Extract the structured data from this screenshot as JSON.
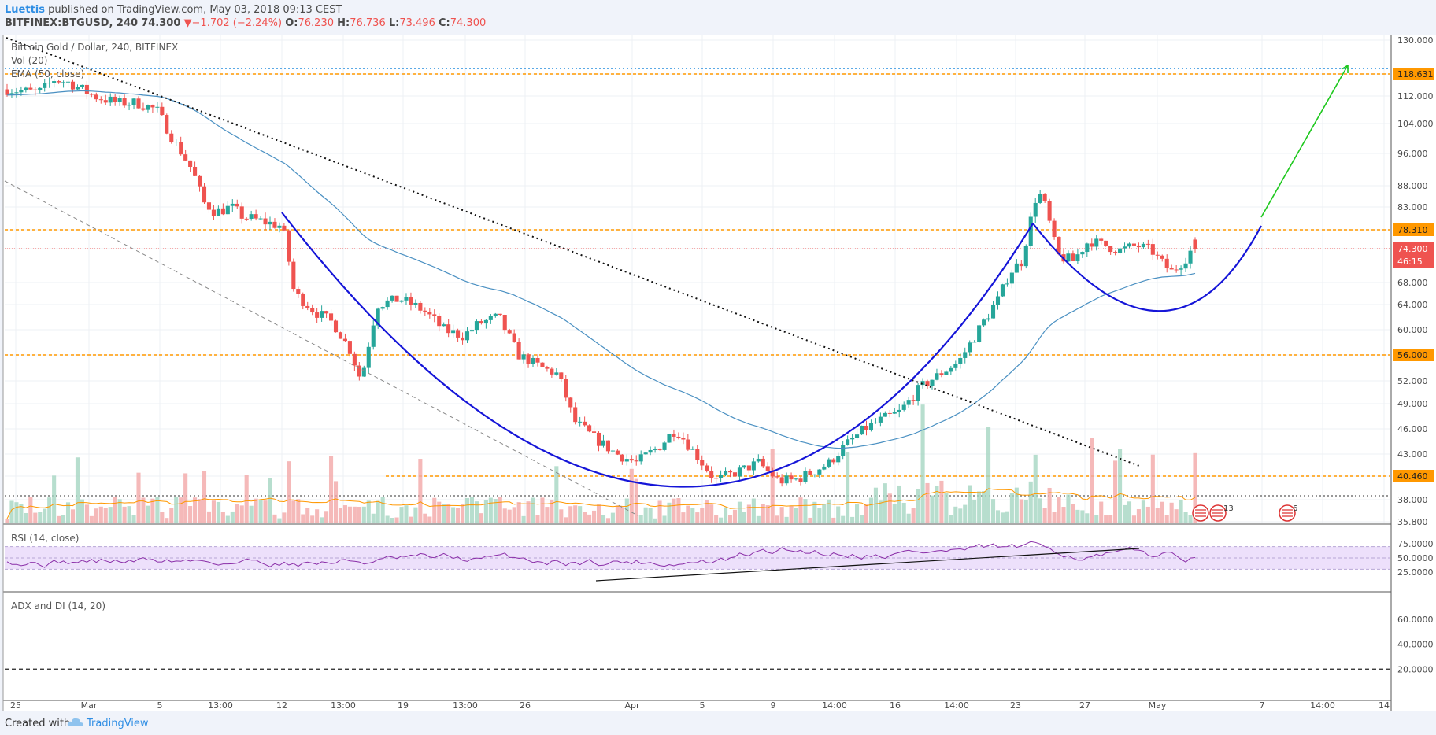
{
  "header": {
    "author": "Luettis",
    "published": "published on TradingView.com, May 03, 2018 09:13 CEST",
    "symbol": "BITFINEX:BTGUSD, 240",
    "last": "74.300",
    "change_arrow": "▼",
    "change": "−1.702 (−2.24%)",
    "open": "76.230",
    "high": "76.736",
    "low": "73.496",
    "close": "74.300"
  },
  "main_pane": {
    "title": "Bitcoin Gold / Dollar, 240, BITFINEX",
    "vol_label": "Vol (20)",
    "ema_label": "EMA (50, close)"
  },
  "chart_data": {
    "type": "candlestick",
    "title": "Bitcoin Gold / Dollar, 240, BITFINEX",
    "price_axis": {
      "ticks": [
        "130.000",
        "118.631",
        "112.000",
        "104.000",
        "96.000",
        "88.000",
        "83.000",
        "78.310",
        "74.300",
        "68.000",
        "64.000",
        "60.000",
        "56.000",
        "52.000",
        "49.000",
        "46.000",
        "43.000",
        "40.460",
        "38.000",
        "35.800"
      ],
      "price_labels": [
        {
          "value": "118.631",
          "kind": "level"
        },
        {
          "value": "78.310",
          "kind": "level"
        },
        {
          "value": "74.300",
          "kind": "last"
        },
        {
          "value": "46:15",
          "kind": "countdown"
        },
        {
          "value": "56.000",
          "kind": "level"
        },
        {
          "value": "40.460",
          "kind": "level"
        }
      ]
    },
    "time_axis": [
      "25",
      "Mar",
      "5",
      "13:00",
      "12",
      "13:00",
      "19",
      "13:00",
      "26",
      "Apr",
      "5",
      "9",
      "14:00",
      "16",
      "14:00",
      "23",
      "27",
      "May",
      "7",
      "14:00",
      "14"
    ],
    "horizontal_levels": [
      118.631,
      78.31,
      74.3,
      56.0,
      40.46,
      38.6
    ],
    "ohlc_last": {
      "open": 76.23,
      "high": 76.736,
      "low": 73.496,
      "close": 74.3
    },
    "ema_period": 50,
    "volume_period": 20,
    "events": [
      "13",
      "6"
    ]
  },
  "rsi_pane": {
    "label": "RSI (14, close)",
    "ticks": [
      "75.0000",
      "50.0000",
      "25.0000"
    ],
    "band": [
      30,
      70
    ]
  },
  "adx_pane": {
    "label": "ADX and DI (14, 20)",
    "ticks": [
      "60.0000",
      "40.0000",
      "20.0000"
    ],
    "threshold": 20
  },
  "footer": {
    "created_with": "Created with",
    "brand": "TradingView"
  },
  "colors": {
    "up": "#26a69a",
    "down": "#ef5350",
    "level": "#ff9800",
    "ema": "#4a90c2",
    "pattern": "#1515d8",
    "target": "#1ec81e"
  }
}
